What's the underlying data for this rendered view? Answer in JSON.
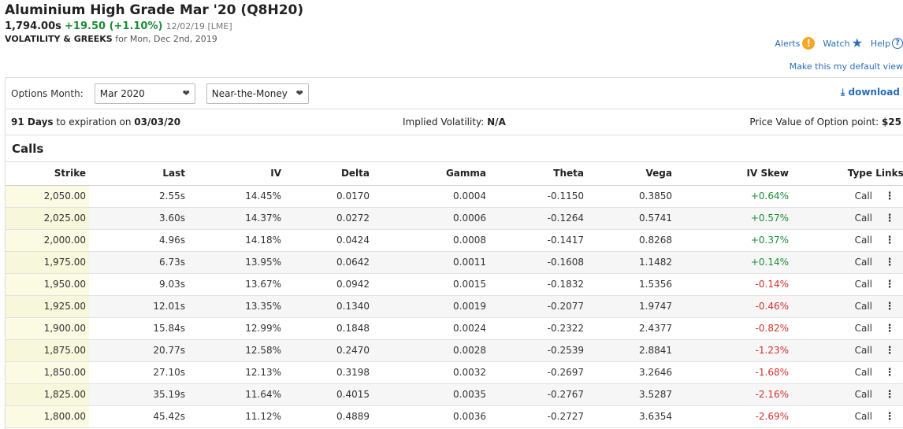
{
  "header": {
    "title": "Aluminium High Grade Mar '20 (Q8H20)",
    "last": "1,794.00s",
    "change": "+19.50 (+1.10%)",
    "date": "12/02/19 [LME]",
    "section_title": "VOLATILITY & GREEKS",
    "for_date": "for Mon, Dec 2nd, 2019"
  },
  "toplinks": {
    "alerts": "Alerts",
    "alerts_icon": "!",
    "watch": "Watch",
    "watch_icon": "★",
    "help": "Help",
    "help_icon": "?",
    "default_view": "Make this my default view"
  },
  "controls": {
    "options_month_label": "Options Month:",
    "month_value": "Mar 2020",
    "moneyness_value": "Near-the-Money",
    "download_label": "download",
    "download_icon": "⤓"
  },
  "info": {
    "days": "91 Days",
    "expiration_text": " to expiration on ",
    "expiration_date": "03/03/20",
    "iv_label": "Implied Volatility: ",
    "iv_value": "N/A",
    "pv_label": "Price Value of Option point: ",
    "pv_value": "$25"
  },
  "calls": {
    "title": "Calls",
    "columns": [
      "Strike",
      "Last",
      "IV",
      "Delta",
      "Gamma",
      "Theta",
      "Vega",
      "IV Skew",
      "Type",
      "Links"
    ],
    "rows": [
      [
        "2,050.00",
        "2.55s",
        "14.45%",
        "0.0170",
        "0.0004",
        "-0.1150",
        "0.3850",
        "+0.64%",
        "Call"
      ],
      [
        "2,025.00",
        "3.60s",
        "14.37%",
        "0.0272",
        "0.0006",
        "-0.1264",
        "0.5741",
        "+0.57%",
        "Call"
      ],
      [
        "2,000.00",
        "4.96s",
        "14.18%",
        "0.0424",
        "0.0008",
        "-0.1417",
        "0.8268",
        "+0.37%",
        "Call"
      ],
      [
        "1,975.00",
        "6.73s",
        "13.95%",
        "0.0642",
        "0.0011",
        "-0.1608",
        "1.1482",
        "+0.14%",
        "Call"
      ],
      [
        "1,950.00",
        "9.03s",
        "13.67%",
        "0.0942",
        "0.0015",
        "-0.1832",
        "1.5356",
        "-0.14%",
        "Call"
      ],
      [
        "1,925.00",
        "12.01s",
        "13.35%",
        "0.1340",
        "0.0019",
        "-0.2077",
        "1.9747",
        "-0.46%",
        "Call"
      ],
      [
        "1,900.00",
        "15.84s",
        "12.99%",
        "0.1848",
        "0.0024",
        "-0.2322",
        "2.4377",
        "-0.82%",
        "Call"
      ],
      [
        "1,875.00",
        "20.77s",
        "12.58%",
        "0.2470",
        "0.0028",
        "-0.2539",
        "2.8841",
        "-1.23%",
        "Call"
      ],
      [
        "1,850.00",
        "27.10s",
        "12.13%",
        "0.3198",
        "0.0032",
        "-0.2697",
        "3.2646",
        "-1.68%",
        "Call"
      ],
      [
        "1,825.00",
        "35.19s",
        "11.64%",
        "0.4015",
        "0.0035",
        "-0.2767",
        "3.5287",
        "-2.16%",
        "Call"
      ],
      [
        "1,800.00",
        "45.42s",
        "11.12%",
        "0.4889",
        "0.0036",
        "-0.2727",
        "3.6354",
        "-2.69%",
        "Call"
      ]
    ],
    "links_glyph": "⋮"
  },
  "colors": {
    "positive": "#1e8c3a",
    "negative": "#d0312d",
    "link": "#2a6db5",
    "strike_bg": "#fbfbe4"
  }
}
